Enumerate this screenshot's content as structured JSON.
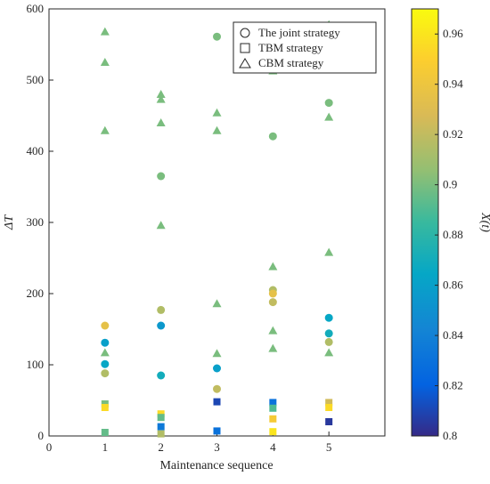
{
  "chart_data": {
    "type": "scatter",
    "xlabel": "Maintenance sequence",
    "ylabel": "ΔT",
    "xlim": [
      0,
      6
    ],
    "ylim": [
      0,
      600
    ],
    "x_ticks": [
      "0",
      "1",
      "2",
      "3",
      "4",
      "5"
    ],
    "y_ticks": [
      "0",
      "100",
      "200",
      "300",
      "400",
      "500",
      "600"
    ],
    "grid": false,
    "legend_position": "top-right",
    "legend": [
      {
        "marker": "circle",
        "label": "The joint strategy"
      },
      {
        "marker": "square",
        "label": "TBM strategy"
      },
      {
        "marker": "triangle",
        "label": "CBM strategy"
      }
    ],
    "colorbar": {
      "label": "X(t)",
      "range": [
        0.8,
        0.97
      ],
      "ticks": [
        "0.8",
        "0.82",
        "0.84",
        "0.86",
        "0.88",
        "0.9",
        "0.92",
        "0.94",
        "0.96"
      ],
      "colormap": "parula"
    },
    "series": [
      {
        "marker": "circle",
        "points": [
          {
            "x": 1,
            "y": 155,
            "c": 0.935
          },
          {
            "x": 1,
            "y": 131,
            "c": 0.86
          },
          {
            "x": 1,
            "y": 101,
            "c": 0.865
          },
          {
            "x": 1,
            "y": 88,
            "c": 0.915
          },
          {
            "x": 2,
            "y": 365,
            "c": 0.9
          },
          {
            "x": 2,
            "y": 177,
            "c": 0.915
          },
          {
            "x": 2,
            "y": 155,
            "c": 0.855
          },
          {
            "x": 2,
            "y": 85,
            "c": 0.87
          },
          {
            "x": 3,
            "y": 561,
            "c": 0.9
          },
          {
            "x": 3,
            "y": 95,
            "c": 0.86
          },
          {
            "x": 3,
            "y": 66,
            "c": 0.92
          },
          {
            "x": 4,
            "y": 421,
            "c": 0.9
          },
          {
            "x": 4,
            "y": 205,
            "c": 0.915
          },
          {
            "x": 4,
            "y": 200,
            "c": 0.935
          },
          {
            "x": 4,
            "y": 188,
            "c": 0.92
          },
          {
            "x": 5,
            "y": 468,
            "c": 0.9
          },
          {
            "x": 5,
            "y": 166,
            "c": 0.865
          },
          {
            "x": 5,
            "y": 144,
            "c": 0.87
          },
          {
            "x": 5,
            "y": 132,
            "c": 0.915
          }
        ]
      },
      {
        "marker": "square",
        "points": [
          {
            "x": 1,
            "y": 45,
            "c": 0.9
          },
          {
            "x": 1,
            "y": 40,
            "c": 0.955
          },
          {
            "x": 1,
            "y": 5,
            "c": 0.895
          },
          {
            "x": 2,
            "y": 31,
            "c": 0.955
          },
          {
            "x": 2,
            "y": 26,
            "c": 0.895
          },
          {
            "x": 2,
            "y": 13,
            "c": 0.835
          },
          {
            "x": 2,
            "y": 3,
            "c": 0.915
          },
          {
            "x": 3,
            "y": 48,
            "c": 0.81
          },
          {
            "x": 3,
            "y": 7,
            "c": 0.83
          },
          {
            "x": 4,
            "y": 47,
            "c": 0.83
          },
          {
            "x": 4,
            "y": 39,
            "c": 0.89
          },
          {
            "x": 4,
            "y": 24,
            "c": 0.945
          },
          {
            "x": 4,
            "y": 6,
            "c": 0.96
          },
          {
            "x": 5,
            "y": 47,
            "c": 0.925
          },
          {
            "x": 5,
            "y": 40,
            "c": 0.955
          },
          {
            "x": 5,
            "y": 20,
            "c": 0.805
          }
        ]
      },
      {
        "marker": "triangle",
        "points": [
          {
            "x": 1,
            "y": 568,
            "c": 0.9
          },
          {
            "x": 1,
            "y": 525,
            "c": 0.9
          },
          {
            "x": 1,
            "y": 429,
            "c": 0.9
          },
          {
            "x": 1,
            "y": 117,
            "c": 0.9
          },
          {
            "x": 2,
            "y": 480,
            "c": 0.9
          },
          {
            "x": 2,
            "y": 473,
            "c": 0.9
          },
          {
            "x": 2,
            "y": 440,
            "c": 0.9
          },
          {
            "x": 2,
            "y": 296,
            "c": 0.9
          },
          {
            "x": 3,
            "y": 454,
            "c": 0.9
          },
          {
            "x": 3,
            "y": 429,
            "c": 0.9
          },
          {
            "x": 3,
            "y": 186,
            "c": 0.9
          },
          {
            "x": 3,
            "y": 116,
            "c": 0.9
          },
          {
            "x": 4,
            "y": 513,
            "c": 0.9
          },
          {
            "x": 4,
            "y": 238,
            "c": 0.9
          },
          {
            "x": 4,
            "y": 148,
            "c": 0.9
          },
          {
            "x": 4,
            "y": 123,
            "c": 0.9
          },
          {
            "x": 5,
            "y": 578,
            "c": 0.9
          },
          {
            "x": 5,
            "y": 448,
            "c": 0.9
          },
          {
            "x": 5,
            "y": 258,
            "c": 0.9
          },
          {
            "x": 5,
            "y": 117,
            "c": 0.9
          }
        ]
      }
    ]
  }
}
